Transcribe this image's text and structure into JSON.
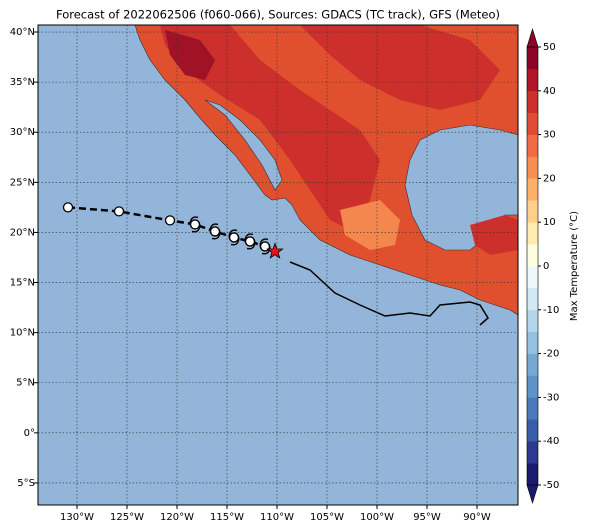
{
  "chart_data": {
    "type": "map",
    "title": "Forecast of 2022062506 (f060-066), Sources: GDACS (TC track), GFS (Meteo)",
    "xlim": [
      -133.9,
      -85.9
    ],
    "ylim": [
      -7.2,
      40.7
    ],
    "xticks": [
      {
        "value": -130,
        "label": "130°W"
      },
      {
        "value": -125,
        "label": "125°W"
      },
      {
        "value": -120,
        "label": "120°W"
      },
      {
        "value": -115,
        "label": "115°W"
      },
      {
        "value": -110,
        "label": "110°W"
      },
      {
        "value": -105,
        "label": "105°W"
      },
      {
        "value": -100,
        "label": "100°W"
      },
      {
        "value": -95,
        "label": "95°W"
      },
      {
        "value": -90,
        "label": "90°W"
      }
    ],
    "yticks": [
      {
        "value": -5,
        "label": "5°S"
      },
      {
        "value": 0,
        "label": "0°"
      },
      {
        "value": 5,
        "label": "5°N"
      },
      {
        "value": 10,
        "label": "10°N"
      },
      {
        "value": 15,
        "label": "15°N"
      },
      {
        "value": 20,
        "label": "20°N"
      },
      {
        "value": 25,
        "label": "25°N"
      },
      {
        "value": 30,
        "label": "30°N"
      },
      {
        "value": 35,
        "label": "35°N"
      },
      {
        "value": 40,
        "label": "40°N"
      }
    ],
    "grid": true,
    "track": {
      "x": [
        -130.9,
        -125.8,
        -120.7,
        -118.2,
        -116.2,
        -114.3,
        -112.7,
        -111.2
      ],
      "y": [
        22.5,
        22.1,
        21.2,
        20.8,
        20.1,
        19.5,
        19.1,
        18.6
      ],
      "markers": [
        "circle",
        "circle",
        "circle",
        "storm",
        "storm",
        "storm",
        "storm",
        "storm"
      ],
      "color": "#000000"
    },
    "current": {
      "x": -110.2,
      "y": 18.1,
      "color": "#e8141c"
    },
    "colorbar": {
      "label": "Max Temperature (°C)",
      "lim": [
        -50,
        50
      ],
      "ticks": [
        -50,
        -40,
        -30,
        -20,
        -10,
        0,
        10,
        20,
        30,
        40,
        50
      ],
      "colors": [
        "#1a1a6e",
        "#2c3990",
        "#3a5ba8",
        "#4a78b8",
        "#5e93c6",
        "#75a9d2",
        "#93c1df",
        "#b3d6ea",
        "#d2e8f2",
        "#eef7fa",
        "#fffde0",
        "#feebb0",
        "#fdd08a",
        "#fcb06a",
        "#f98e52",
        "#f06c44",
        "#e14b36",
        "#cc2f2c",
        "#b01428",
        "#8c0428"
      ]
    }
  }
}
